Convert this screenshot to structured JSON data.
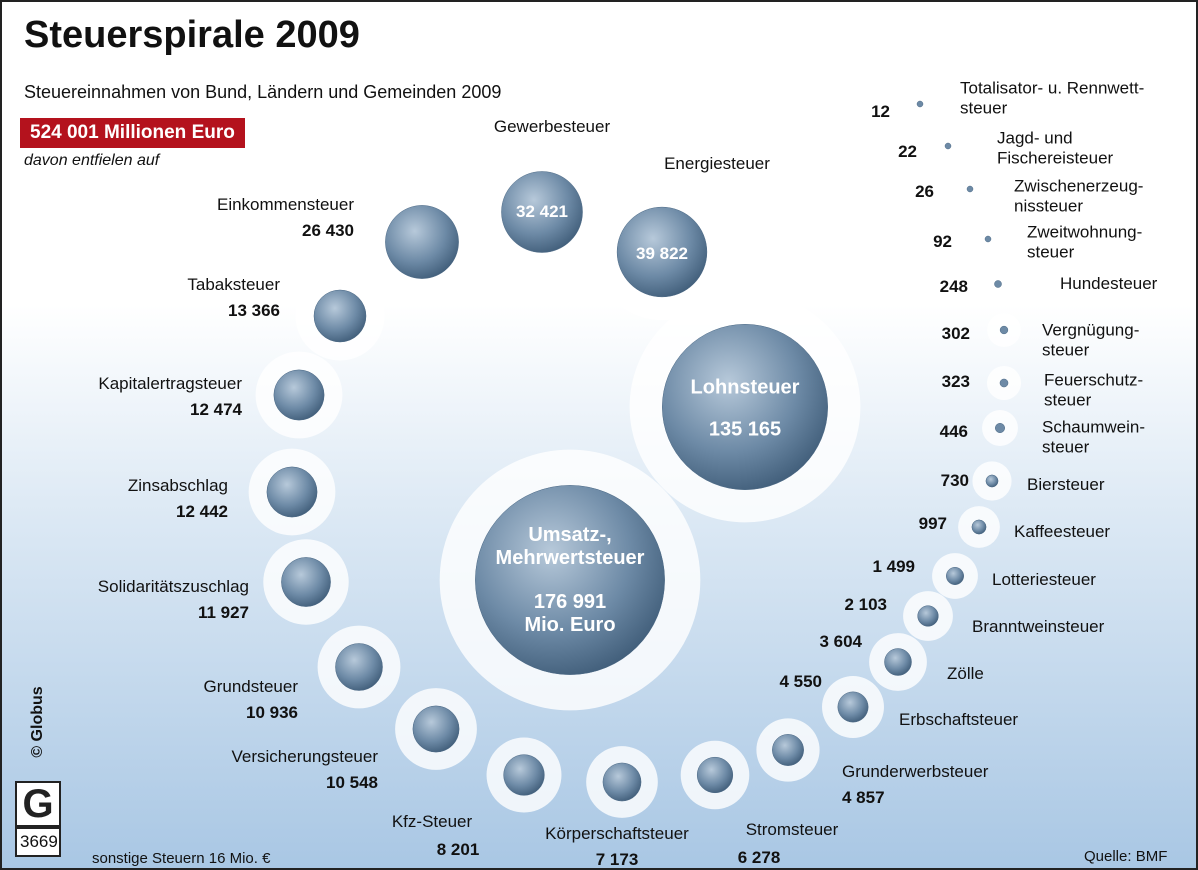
{
  "chart_data": {
    "type": "bubble-spiral",
    "title": "Steuerspirale 2009",
    "subtitle": "Steuereinnahmen von Bund, Ländern und Gemeinden 2009",
    "total_label": "524 001 Millionen Euro",
    "intro": "davon entfielen auf",
    "note": "sonstige Steuern 16 Mio. €",
    "source": "Quelle: BMF",
    "credit": "© Globus",
    "graphic_number": "3669",
    "color": "#6d8aa6",
    "categories": [
      "Umsatz-,\nMehrwertsteuer",
      "Lohnsteuer",
      "Energiesteuer",
      "Gewerbesteuer",
      "Einkommensteuer",
      "Tabaksteuer",
      "Kapitalertragsteuer",
      "Zinsabschlag",
      "Solidaritätszuschlag",
      "Grundsteuer",
      "Versicherungsteuer",
      "Kfz-Steuer",
      "Körperschaftsteuer",
      "Stromsteuer",
      "Grunderwerbsteuer",
      "Erbschaftsteuer",
      "Zölle",
      "Branntweinsteuer",
      "Lotteriesteuer",
      "Kaffeesteuer",
      "Biersteuer",
      "Schaumwein-\nsteuer",
      "Feuerschutz-\nsteuer",
      "Vergnügung-\nsteuer",
      "Hundesteuer",
      "Zweitwohnung-\nsteuer",
      "Zwischenerzeug-\nnissteuer",
      "Jagd- und\nFischereisteuer",
      "Totalisator- u. Rennwett-\nsteuer"
    ],
    "values": [
      176991,
      135165,
      39822,
      32421,
      26430,
      13366,
      12474,
      12442,
      11927,
      10936,
      10548,
      8201,
      7173,
      6278,
      4857,
      4550,
      3604,
      2103,
      1499,
      997,
      730,
      446,
      323,
      302,
      248,
      92,
      26,
      22,
      12
    ],
    "value_labels": [
      "176 991\nMio. Euro",
      "135 165",
      "39 822",
      "32 421",
      "26 430",
      "13 366",
      "12 474",
      "12 442",
      "11 927",
      "10 936",
      "10 548",
      "8 201",
      "7 173",
      "6 278",
      "4 857",
      "4 550",
      "3 604",
      "2 103",
      "1 499",
      "997",
      "730",
      "446",
      "323",
      "302",
      "248",
      "92",
      "26",
      "22",
      "12"
    ]
  }
}
